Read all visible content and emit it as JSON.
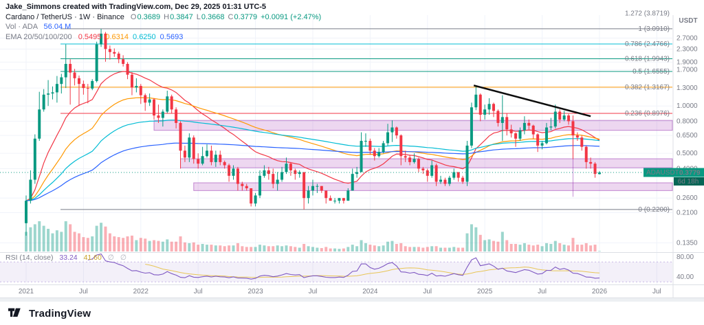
{
  "attribution": "Jake_Simmons created with TradingView.com, Dec 29, 2025 01:31 UTC-5",
  "legend": {
    "title": "Cardano / TetherUS · 1W · Binance",
    "o_label": "O",
    "o": "0.3689",
    "h_label": "H",
    "h": "0.3847",
    "l_label": "L",
    "l": "0.3668",
    "c_label": "C",
    "c": "0.3779",
    "change": "+0.0091 (+2.47%)",
    "vol_label": "Vol · ADA",
    "vol_value": "56.04 M",
    "ema_label": "EMA 20/50/100/200",
    "ema_values": [
      {
        "text": "0.5495",
        "style": "color:#f23645"
      },
      {
        "text": "0.6314",
        "style": "color:#ff9800"
      },
      {
        "text": "0.6250",
        "style": "color:#00bcd4"
      },
      {
        "text": "0.5693",
        "style": "color:#2962ff"
      }
    ],
    "rsi_label": "RSI (14, close)",
    "rsi_value": "33.24",
    "rsi_value_style": "color:#7e57c2",
    "rsi_ma_value": "41.60",
    "rsi_ma_value_style": "color:#c9a227",
    "hidden_plot_symbol": "∅"
  },
  "price_axis": {
    "currency": "USDT",
    "ticks": [
      "2.7000",
      "2.3000",
      "1.9000",
      "1.7000",
      "1.3000",
      "1.0000",
      "0.8000",
      "0.6500",
      "0.5000",
      "0.4000",
      "0.2600",
      "0.2100",
      "0.1350"
    ],
    "rsi_ticks": [
      "80.00",
      "40.00"
    ],
    "symbol_label": "ADAUSDT",
    "price": "0.3779",
    "countdown": "6d 18h"
  },
  "toolbar": {
    "brand": "TradingView"
  },
  "colors": {
    "up": "#089981",
    "down": "#f23645",
    "vol_up": "rgba(8,153,129,0.4)",
    "vol_down": "rgba(242,54,69,0.4)",
    "ema": [
      "#f23645",
      "#ff9800",
      "#00bcd4",
      "#2962ff"
    ],
    "rsi": "#7e57c2",
    "rsi_ma": "#e8c555",
    "rsi_band": "rgba(126,87,194,0.09)",
    "zone_fill": "rgba(171,71,188,0.22)",
    "zone_stroke": "rgba(142,36,170,0.5)",
    "trendline": "#0c0c0c",
    "badge": "#089981",
    "badge_dark": "#056656",
    "grid": "#f0f3fa",
    "border": "#dcdfe5",
    "axis_text": "#787b86"
  },
  "drawings": {
    "fib_levels": [
      {
        "label": "1.272 (3.8719)",
        "price": 3.8719,
        "color": "#f23645"
      },
      {
        "label": "1 (3.0910)",
        "price": 3.091,
        "color": "#787b86"
      },
      {
        "label": "0.786 (2.4766)",
        "price": 2.4766,
        "color": "#00bcd4"
      },
      {
        "label": "0.618 (1.9943)",
        "price": 1.9943,
        "color": "#089981"
      },
      {
        "label": "0.5 (1.6555)",
        "price": 1.6555,
        "color": "#089981"
      },
      {
        "label": "0.382 (1.3167)",
        "price": 1.3167,
        "color": "#ff9800"
      },
      {
        "label": "0.236 (0.8976)",
        "price": 0.8976,
        "color": "#f23645"
      },
      {
        "label": "0 (0.2200)",
        "price": 0.22,
        "color": "#787b86"
      }
    ],
    "zones": [
      {
        "from_index": 29,
        "price_bottom": 0.7,
        "price_top": 0.81
      },
      {
        "from_index": 35,
        "price_bottom": 0.405,
        "price_top": 0.462
      },
      {
        "from_index": 38,
        "price_bottom": 0.29,
        "price_top": 0.325
      }
    ],
    "vertical_line": {
      "index": 124,
      "price_top": 0.8,
      "price_bottom": 0.265
    },
    "trendline": {
      "from_index": 101.5,
      "from_price": 1.35,
      "to_index": 128,
      "to_price": 0.86
    }
  },
  "chart_data": {
    "type": "candlestick",
    "symbol": "ADAUSDT",
    "market": "Cardano / TetherUS",
    "exchange": "Binance",
    "interval": "1W",
    "scale": "log",
    "start_date": "2021-01-04",
    "points_per_year": 26,
    "volume_unit": "M ADA",
    "last_bar": {
      "open": 0.3689,
      "high": 0.3847,
      "low": 0.3668,
      "close": 0.3779,
      "change": "+0.0091 (+2.47%)",
      "volume": "56.04 M"
    },
    "indicators": {
      "ema_periods": [
        20,
        50,
        100,
        200
      ],
      "rsi_period": 14,
      "rsi_ma_period": 14
    },
    "time_axis": [
      {
        "label": "2021",
        "i": 0,
        "major": true
      },
      {
        "label": "Jul",
        "i": 13,
        "major": false
      },
      {
        "label": "2022",
        "i": 26,
        "major": true
      },
      {
        "label": "Jul",
        "i": 39,
        "major": false
      },
      {
        "label": "2023",
        "i": 52,
        "major": true
      },
      {
        "label": "Jul",
        "i": 65,
        "major": false
      },
      {
        "label": "2024",
        "i": 78,
        "major": true
      },
      {
        "label": "Jul",
        "i": 91,
        "major": false
      },
      {
        "label": "2025",
        "i": 104,
        "major": true
      },
      {
        "label": "Jul",
        "i": 117,
        "major": false
      },
      {
        "label": "2026",
        "i": 130,
        "major": true
      },
      {
        "label": "Jul",
        "i": 143,
        "major": false
      }
    ],
    "candles": [
      [
        0.18,
        0.27,
        0.15,
        0.25,
        2600
      ],
      [
        0.25,
        0.39,
        0.24,
        0.34,
        3200
      ],
      [
        0.34,
        0.66,
        0.32,
        0.62,
        3600
      ],
      [
        0.62,
        1.23,
        0.6,
        0.95,
        4000
      ],
      [
        0.95,
        1.28,
        0.92,
        1.18,
        3400
      ],
      [
        1.18,
        1.46,
        1.0,
        1.2,
        3000
      ],
      [
        1.2,
        1.33,
        1.1,
        1.22,
        2400
      ],
      [
        1.22,
        1.55,
        1.05,
        1.38,
        2800
      ],
      [
        1.38,
        1.6,
        1.2,
        1.52,
        2600
      ],
      [
        1.52,
        2.46,
        1.3,
        1.85,
        4000
      ],
      [
        1.85,
        1.98,
        1.02,
        1.63,
        3600
      ],
      [
        1.63,
        1.72,
        1.35,
        1.5,
        2600
      ],
      [
        1.5,
        1.56,
        1.0,
        1.38,
        2400
      ],
      [
        1.38,
        1.45,
        1.18,
        1.3,
        1900
      ],
      [
        1.3,
        1.38,
        1.04,
        1.29,
        1800
      ],
      [
        1.29,
        1.48,
        1.26,
        1.44,
        2000
      ],
      [
        1.44,
        2.56,
        1.41,
        2.46,
        3400
      ],
      [
        2.46,
        3.09,
        2.37,
        2.88,
        3800
      ],
      [
        2.88,
        2.95,
        1.91,
        2.3,
        3300
      ],
      [
        2.3,
        2.42,
        1.97,
        2.2,
        2400
      ],
      [
        2.2,
        2.32,
        2.05,
        2.15,
        2000
      ],
      [
        2.15,
        2.21,
        1.87,
        1.98,
        1900
      ],
      [
        1.98,
        2.1,
        1.78,
        1.85,
        1800
      ],
      [
        1.85,
        1.9,
        1.48,
        1.58,
        2000
      ],
      [
        1.58,
        1.64,
        1.17,
        1.31,
        2100
      ],
      [
        1.31,
        1.5,
        1.22,
        1.34,
        1500
      ],
      [
        1.34,
        1.38,
        1.03,
        1.17,
        1800
      ],
      [
        1.17,
        1.2,
        0.93,
        1.05,
        1700
      ],
      [
        1.05,
        1.2,
        1.0,
        1.1,
        1400
      ],
      [
        1.1,
        1.12,
        0.82,
        0.87,
        1500
      ],
      [
        0.87,
        1.02,
        0.78,
        0.84,
        1400
      ],
      [
        0.84,
        0.95,
        0.74,
        0.92,
        1300
      ],
      [
        0.92,
        1.25,
        0.9,
        1.15,
        1600
      ],
      [
        1.15,
        1.18,
        0.9,
        0.95,
        1300
      ],
      [
        0.95,
        0.98,
        0.72,
        0.78,
        1300
      ],
      [
        0.78,
        0.8,
        0.4,
        0.52,
        2000
      ],
      [
        0.52,
        0.56,
        0.44,
        0.47,
        1200
      ],
      [
        0.47,
        0.67,
        0.44,
        0.63,
        1100
      ],
      [
        0.63,
        0.65,
        0.43,
        0.46,
        1200
      ],
      [
        0.46,
        0.5,
        0.4,
        0.43,
        900
      ],
      [
        0.43,
        0.55,
        0.42,
        0.48,
        1000
      ],
      [
        0.48,
        0.57,
        0.47,
        0.52,
        900
      ],
      [
        0.52,
        0.56,
        0.42,
        0.44,
        900
      ],
      [
        0.44,
        0.52,
        0.41,
        0.49,
        800
      ],
      [
        0.49,
        0.52,
        0.42,
        0.44,
        800
      ],
      [
        0.44,
        0.45,
        0.4,
        0.42,
        700
      ],
      [
        0.42,
        0.43,
        0.33,
        0.36,
        800
      ],
      [
        0.36,
        0.42,
        0.34,
        0.4,
        800
      ],
      [
        0.4,
        0.41,
        0.29,
        0.32,
        1100
      ],
      [
        0.32,
        0.33,
        0.29,
        0.31,
        700
      ],
      [
        0.31,
        0.32,
        0.29,
        0.3,
        600
      ],
      [
        0.3,
        0.3,
        0.23,
        0.24,
        600
      ],
      [
        0.24,
        0.28,
        0.23,
        0.27,
        600
      ],
      [
        0.27,
        0.39,
        0.26,
        0.36,
        900
      ],
      [
        0.36,
        0.42,
        0.35,
        0.39,
        800
      ],
      [
        0.39,
        0.41,
        0.34,
        0.37,
        700
      ],
      [
        0.37,
        0.4,
        0.3,
        0.32,
        700
      ],
      [
        0.32,
        0.38,
        0.29,
        0.34,
        800
      ],
      [
        0.34,
        0.41,
        0.33,
        0.38,
        700
      ],
      [
        0.38,
        0.47,
        0.37,
        0.43,
        800
      ],
      [
        0.43,
        0.44,
        0.36,
        0.39,
        700
      ],
      [
        0.39,
        0.4,
        0.34,
        0.37,
        600
      ],
      [
        0.37,
        0.39,
        0.35,
        0.38,
        500
      ],
      [
        0.38,
        0.38,
        0.22,
        0.26,
        1000
      ],
      [
        0.26,
        0.31,
        0.24,
        0.29,
        700
      ],
      [
        0.29,
        0.34,
        0.27,
        0.31,
        600
      ],
      [
        0.31,
        0.32,
        0.28,
        0.31,
        500
      ],
      [
        0.31,
        0.31,
        0.28,
        0.29,
        450
      ],
      [
        0.29,
        0.29,
        0.24,
        0.26,
        600
      ],
      [
        0.26,
        0.27,
        0.25,
        0.25,
        400
      ],
      [
        0.25,
        0.26,
        0.24,
        0.25,
        400
      ],
      [
        0.25,
        0.26,
        0.24,
        0.26,
        350
      ],
      [
        0.26,
        0.26,
        0.24,
        0.25,
        400
      ],
      [
        0.25,
        0.3,
        0.25,
        0.29,
        600
      ],
      [
        0.29,
        0.4,
        0.29,
        0.37,
        900
      ],
      [
        0.37,
        0.41,
        0.35,
        0.38,
        700
      ],
      [
        0.38,
        0.68,
        0.38,
        0.6,
        1500
      ],
      [
        0.6,
        0.67,
        0.55,
        0.6,
        1100
      ],
      [
        0.6,
        0.62,
        0.49,
        0.52,
        900
      ],
      [
        0.52,
        0.54,
        0.45,
        0.48,
        800
      ],
      [
        0.48,
        0.54,
        0.47,
        0.51,
        700
      ],
      [
        0.51,
        0.6,
        0.5,
        0.58,
        800
      ],
      [
        0.58,
        0.77,
        0.56,
        0.68,
        1300
      ],
      [
        0.68,
        0.81,
        0.59,
        0.73,
        1400
      ],
      [
        0.73,
        0.74,
        0.62,
        0.65,
        1000
      ],
      [
        0.65,
        0.66,
        0.42,
        0.48,
        1100
      ],
      [
        0.48,
        0.52,
        0.44,
        0.47,
        700
      ],
      [
        0.47,
        0.49,
        0.42,
        0.44,
        600
      ],
      [
        0.44,
        0.5,
        0.43,
        0.46,
        600
      ],
      [
        0.46,
        0.47,
        0.38,
        0.4,
        600
      ],
      [
        0.4,
        0.41,
        0.37,
        0.39,
        500
      ],
      [
        0.39,
        0.4,
        0.33,
        0.36,
        600
      ],
      [
        0.36,
        0.45,
        0.35,
        0.42,
        700
      ],
      [
        0.42,
        0.43,
        0.31,
        0.33,
        700
      ],
      [
        0.33,
        0.36,
        0.32,
        0.34,
        500
      ],
      [
        0.34,
        0.35,
        0.31,
        0.32,
        500
      ],
      [
        0.32,
        0.36,
        0.31,
        0.35,
        500
      ],
      [
        0.35,
        0.4,
        0.34,
        0.38,
        600
      ],
      [
        0.38,
        0.38,
        0.33,
        0.35,
        500
      ],
      [
        0.35,
        0.36,
        0.32,
        0.33,
        500
      ],
      [
        0.33,
        0.6,
        0.31,
        0.56,
        2400
      ],
      [
        0.56,
        1.05,
        0.54,
        0.98,
        3600
      ],
      [
        0.98,
        1.33,
        0.94,
        1.18,
        3200
      ],
      [
        1.18,
        1.2,
        0.8,
        0.88,
        2200
      ],
      [
        0.88,
        1.02,
        0.82,
        0.95,
        1500
      ],
      [
        0.95,
        1.12,
        0.88,
        1.03,
        1600
      ],
      [
        1.03,
        1.05,
        0.85,
        0.93,
        1400
      ],
      [
        0.93,
        0.95,
        0.74,
        0.78,
        1300
      ],
      [
        0.78,
        1.17,
        0.6,
        0.85,
        2600
      ],
      [
        0.85,
        0.9,
        0.65,
        0.71,
        1500
      ],
      [
        0.71,
        0.76,
        0.63,
        0.67,
        1000
      ],
      [
        0.67,
        0.68,
        0.55,
        0.62,
        1000
      ],
      [
        0.62,
        0.73,
        0.6,
        0.7,
        900
      ],
      [
        0.7,
        0.86,
        0.66,
        0.78,
        1100
      ],
      [
        0.78,
        0.82,
        0.71,
        0.75,
        900
      ],
      [
        0.75,
        0.76,
        0.62,
        0.66,
        800
      ],
      [
        0.66,
        0.67,
        0.51,
        0.56,
        900
      ],
      [
        0.56,
        0.6,
        0.53,
        0.58,
        700
      ],
      [
        0.58,
        0.78,
        0.57,
        0.73,
        1100
      ],
      [
        0.73,
        0.84,
        0.7,
        0.74,
        1000
      ],
      [
        0.74,
        1.02,
        0.72,
        0.92,
        1400
      ],
      [
        0.92,
        0.95,
        0.78,
        0.82,
        1100
      ],
      [
        0.82,
        0.93,
        0.8,
        0.87,
        900
      ],
      [
        0.87,
        0.89,
        0.76,
        0.8,
        800
      ],
      [
        0.8,
        0.87,
        0.46,
        0.65,
        1800
      ],
      [
        0.65,
        0.68,
        0.6,
        0.63,
        900
      ],
      [
        0.63,
        0.65,
        0.52,
        0.55,
        900
      ],
      [
        0.55,
        0.56,
        0.4,
        0.44,
        1100
      ],
      [
        0.44,
        0.47,
        0.4,
        0.43,
        800
      ],
      [
        0.43,
        0.44,
        0.35,
        0.37,
        900
      ],
      [
        0.369,
        0.385,
        0.367,
        0.378,
        56
      ]
    ]
  }
}
